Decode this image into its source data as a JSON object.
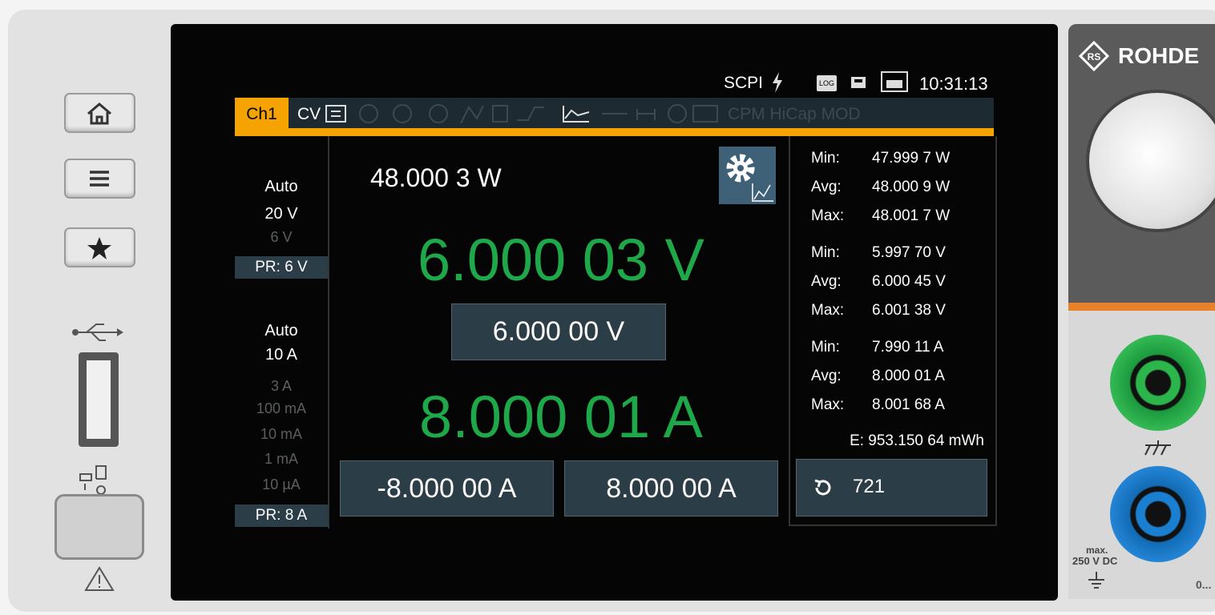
{
  "status_bar": {
    "interface": "SCPI",
    "log": "LOG",
    "time": "10:31:13"
  },
  "tab": {
    "channel": "Ch1",
    "mode": "CV",
    "disabled_modes": "CPM HiCap MOD"
  },
  "range_panel": {
    "voltage": {
      "mode": "Auto",
      "ranges": [
        "20 V",
        "6 V"
      ],
      "preset": "PR: 6 V"
    },
    "current": {
      "mode": "Auto",
      "ranges": [
        "10 A",
        "3 A",
        "100 mA",
        "10 mA",
        "1 mA",
        "10 µA"
      ],
      "preset": "PR: 8 A"
    }
  },
  "readings": {
    "power": "48.000 3 W",
    "voltage": "6.000 03 V",
    "voltage_setpoint": "6.000 00  V",
    "current": "8.000 01 A",
    "current_limit_negative": "-8.000 00  A",
    "current_limit_positive": "8.000 00  A"
  },
  "statistics": {
    "groups": [
      {
        "rows": [
          {
            "label": "Min:",
            "value": "47.999 7 W"
          },
          {
            "label": "Avg:",
            "value": "48.000 9 W"
          },
          {
            "label": "Max:",
            "value": "48.001 7 W"
          }
        ]
      },
      {
        "rows": [
          {
            "label": "Min:",
            "value": "5.997 70 V"
          },
          {
            "label": "Avg:",
            "value": "6.000 45 V"
          },
          {
            "label": "Max:",
            "value": "6.001 38 V"
          }
        ]
      },
      {
        "rows": [
          {
            "label": "Min:",
            "value": "7.990 11 A"
          },
          {
            "label": "Avg:",
            "value": "8.000 01 A"
          },
          {
            "label": "Max:",
            "value": "8.001 68 A"
          }
        ]
      }
    ],
    "energy": "E: 953.150 64 mWh"
  },
  "counter": "721",
  "front_panel": {
    "brand": "ROHDE",
    "rating": [
      "max.",
      "250 V DC"
    ],
    "label": "0..."
  }
}
